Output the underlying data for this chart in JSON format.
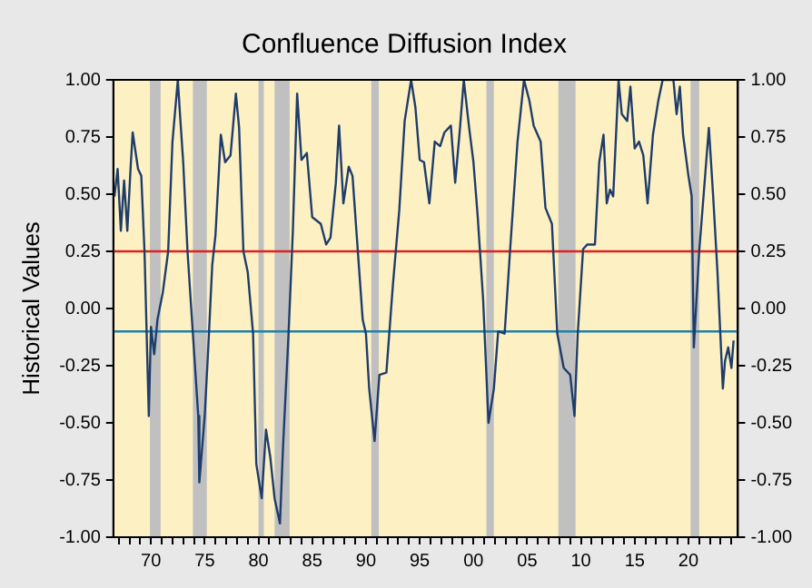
{
  "chart_data": {
    "type": "line",
    "title": "Confluence Diffusion Index",
    "ylabel": "Historical Values",
    "x": [
      1966.6,
      1966.9,
      1967.2,
      1967.5,
      1967.8,
      1968.1,
      1968.3,
      1968.8,
      1969.1,
      1969.4,
      1969.8,
      1970.0,
      1970.3,
      1970.6,
      1971.1,
      1971.6,
      1972.0,
      1972.5,
      1972.7,
      1973.0,
      1973.4,
      1973.9,
      1974.4,
      1974.5,
      1975.0,
      1975.3,
      1975.7,
      1976.0,
      1976.5,
      1976.9,
      1977.4,
      1977.9,
      1978.2,
      1978.6,
      1979.0,
      1979.5,
      1979.8,
      1980.3,
      1980.7,
      1981.1,
      1981.5,
      1982.0,
      1982.3,
      1982.8,
      1983.2,
      1983.6,
      1984.0,
      1984.5,
      1985.0,
      1985.8,
      1986.3,
      1986.7,
      1987.2,
      1987.5,
      1987.9,
      1988.4,
      1988.75,
      1989.2,
      1989.7,
      1990.0,
      1990.3,
      1990.8,
      1991.25,
      1991.9,
      1992.5,
      1993.1,
      1993.6,
      1994.2,
      1994.6,
      1995.0,
      1995.4,
      1995.9,
      1996.4,
      1996.9,
      1997.3,
      1997.9,
      1998.3,
      1998.75,
      1999.1,
      1999.6,
      2000.0,
      2000.4,
      2000.9,
      2001.4,
      2001.9,
      2002.3,
      2002.9,
      2003.4,
      2004.1,
      2004.7,
      2005.2,
      2005.6,
      2006.25,
      2006.7,
      2007.3,
      2007.8,
      2008.4,
      2009.0,
      2009.4,
      2009.7,
      2010.2,
      2010.6,
      2011.3,
      2011.7,
      2012.1,
      2012.4,
      2012.7,
      2013.0,
      2013.5,
      2013.8,
      2014.3,
      2014.6,
      2015.0,
      2015.4,
      2015.8,
      2016.2,
      2016.7,
      2017.2,
      2017.6,
      2018.6,
      2018.9,
      2019.2,
      2019.5,
      2020.0,
      2020.3,
      2020.5,
      2021.0,
      2021.6,
      2021.9,
      2022.3,
      2022.7,
      2023.2,
      2023.4,
      2023.7,
      2024.0,
      2024.2
    ],
    "series": [
      {
        "color": "#1f3d6b",
        "values": [
          0.49,
          0.61,
          0.34,
          0.56,
          0.34,
          0.61,
          0.77,
          0.61,
          0.58,
          0.25,
          -0.47,
          -0.08,
          -0.2,
          -0.05,
          0.07,
          0.25,
          0.73,
          1.0,
          0.85,
          0.64,
          0.25,
          -0.11,
          -0.47,
          -0.76,
          -0.47,
          -0.2,
          0.19,
          0.32,
          0.76,
          0.64,
          0.67,
          0.94,
          0.79,
          0.25,
          0.16,
          -0.11,
          -0.68,
          -0.83,
          -0.53,
          -0.65,
          -0.83,
          -0.94,
          -0.59,
          -0.11,
          0.34,
          0.94,
          0.65,
          0.68,
          0.4,
          0.37,
          0.28,
          0.31,
          0.55,
          0.8,
          0.46,
          0.62,
          0.58,
          0.28,
          -0.05,
          -0.11,
          -0.35,
          -0.58,
          -0.29,
          -0.28,
          0.1,
          0.43,
          0.82,
          1.0,
          0.88,
          0.65,
          0.64,
          0.46,
          0.73,
          0.71,
          0.77,
          0.8,
          0.55,
          0.79,
          1.0,
          0.79,
          0.64,
          0.4,
          0.04,
          -0.5,
          -0.35,
          -0.1,
          -0.11,
          0.25,
          0.73,
          1.0,
          0.91,
          0.8,
          0.73,
          0.44,
          0.37,
          -0.11,
          -0.26,
          -0.29,
          -0.47,
          -0.11,
          0.26,
          0.28,
          0.28,
          0.64,
          0.76,
          0.46,
          0.52,
          0.49,
          1.0,
          0.85,
          0.82,
          0.97,
          0.7,
          0.73,
          0.67,
          0.46,
          0.76,
          0.91,
          1.0,
          1.0,
          0.85,
          0.97,
          0.76,
          0.58,
          0.49,
          -0.17,
          0.25,
          0.61,
          0.79,
          0.49,
          0.16,
          -0.35,
          -0.23,
          -0.17,
          -0.26,
          -0.14
        ]
      }
    ],
    "xlim": [
      1966.5,
      2024.6
    ],
    "xticks": [
      {
        "value": 1967,
        "label": null
      },
      {
        "value": 1968,
        "label": null
      },
      {
        "value": 1969,
        "label": null
      },
      {
        "value": 1970,
        "label": "70"
      },
      {
        "value": 1971,
        "label": null
      },
      {
        "value": 1972,
        "label": null
      },
      {
        "value": 1973,
        "label": null
      },
      {
        "value": 1974,
        "label": null
      },
      {
        "value": 1975,
        "label": "75"
      },
      {
        "value": 1976,
        "label": null
      },
      {
        "value": 1977,
        "label": null
      },
      {
        "value": 1978,
        "label": null
      },
      {
        "value": 1979,
        "label": null
      },
      {
        "value": 1980,
        "label": "80"
      },
      {
        "value": 1981,
        "label": null
      },
      {
        "value": 1982,
        "label": null
      },
      {
        "value": 1983,
        "label": null
      },
      {
        "value": 1984,
        "label": null
      },
      {
        "value": 1985,
        "label": "85"
      },
      {
        "value": 1986,
        "label": null
      },
      {
        "value": 1987,
        "label": null
      },
      {
        "value": 1988,
        "label": null
      },
      {
        "value": 1989,
        "label": null
      },
      {
        "value": 1990,
        "label": "90"
      },
      {
        "value": 1991,
        "label": null
      },
      {
        "value": 1992,
        "label": null
      },
      {
        "value": 1993,
        "label": null
      },
      {
        "value": 1994,
        "label": null
      },
      {
        "value": 1995,
        "label": "95"
      },
      {
        "value": 1996,
        "label": null
      },
      {
        "value": 1997,
        "label": null
      },
      {
        "value": 1998,
        "label": null
      },
      {
        "value": 1999,
        "label": null
      },
      {
        "value": 2000,
        "label": "00"
      },
      {
        "value": 2001,
        "label": null
      },
      {
        "value": 2002,
        "label": null
      },
      {
        "value": 2003,
        "label": null
      },
      {
        "value": 2004,
        "label": null
      },
      {
        "value": 2005,
        "label": "05"
      },
      {
        "value": 2006,
        "label": null
      },
      {
        "value": 2007,
        "label": null
      },
      {
        "value": 2008,
        "label": null
      },
      {
        "value": 2009,
        "label": null
      },
      {
        "value": 2010,
        "label": "10"
      },
      {
        "value": 2011,
        "label": null
      },
      {
        "value": 2012,
        "label": null
      },
      {
        "value": 2013,
        "label": null
      },
      {
        "value": 2014,
        "label": null
      },
      {
        "value": 2015,
        "label": "15"
      },
      {
        "value": 2016,
        "label": null
      },
      {
        "value": 2017,
        "label": null
      },
      {
        "value": 2018,
        "label": null
      },
      {
        "value": 2019,
        "label": null
      },
      {
        "value": 2020,
        "label": "20"
      },
      {
        "value": 2021,
        "label": null
      },
      {
        "value": 2022,
        "label": null
      },
      {
        "value": 2023,
        "label": null
      },
      {
        "value": 2024,
        "label": null
      }
    ],
    "ylim": [
      -1,
      1
    ],
    "yticks": [
      {
        "value": -1,
        "label": "-1.00"
      },
      {
        "value": -0.75,
        "label": "-0.75"
      },
      {
        "value": -0.5,
        "label": "-0.50"
      },
      {
        "value": -0.25,
        "label": "-0.25"
      },
      {
        "value": 0,
        "label": "0.00"
      },
      {
        "value": 0.25,
        "label": "0.25"
      },
      {
        "value": 0.5,
        "label": "0.50"
      },
      {
        "value": 0.75,
        "label": "0.75"
      },
      {
        "value": 1,
        "label": "1.00"
      }
    ],
    "y2lim": [
      -1,
      1
    ],
    "y2ticks": [
      {
        "value": -1,
        "label": "-1.00"
      },
      {
        "value": -0.75,
        "label": "-0.75"
      },
      {
        "value": -0.5,
        "label": "-0.50"
      },
      {
        "value": -0.25,
        "label": "-0.25"
      },
      {
        "value": 0,
        "label": "0.00"
      },
      {
        "value": 0.25,
        "label": "0.25"
      },
      {
        "value": 0.5,
        "label": "0.50"
      },
      {
        "value": 0.75,
        "label": "0.75"
      },
      {
        "value": 1,
        "label": "1.00"
      }
    ],
    "ref_lines": [
      {
        "axis": "y",
        "value": 0.25,
        "color": "#e02020"
      },
      {
        "axis": "y",
        "value": -0.1,
        "color": "#2080a8"
      }
    ],
    "bands": [
      {
        "axis": "x",
        "from": 1969.9,
        "to": 1970.9,
        "color": "#c0c0c0"
      },
      {
        "axis": "x",
        "from": 1973.9,
        "to": 1975.2,
        "color": "#c0c0c0"
      },
      {
        "axis": "x",
        "from": 1980.0,
        "to": 1980.5,
        "color": "#c0c0c0"
      },
      {
        "axis": "x",
        "from": 1981.5,
        "to": 1982.9,
        "color": "#c0c0c0"
      },
      {
        "axis": "x",
        "from": 1990.5,
        "to": 1991.2,
        "color": "#c0c0c0"
      },
      {
        "axis": "x",
        "from": 2001.2,
        "to": 2001.9,
        "color": "#c0c0c0"
      },
      {
        "axis": "x",
        "from": 2007.9,
        "to": 2009.5,
        "color": "#c0c0c0"
      },
      {
        "axis": "x",
        "from": 2020.2,
        "to": 2021.0,
        "color": "#c0c0c0"
      }
    ],
    "grid": false,
    "legend": false,
    "marker": "none",
    "line_style": "solid"
  }
}
